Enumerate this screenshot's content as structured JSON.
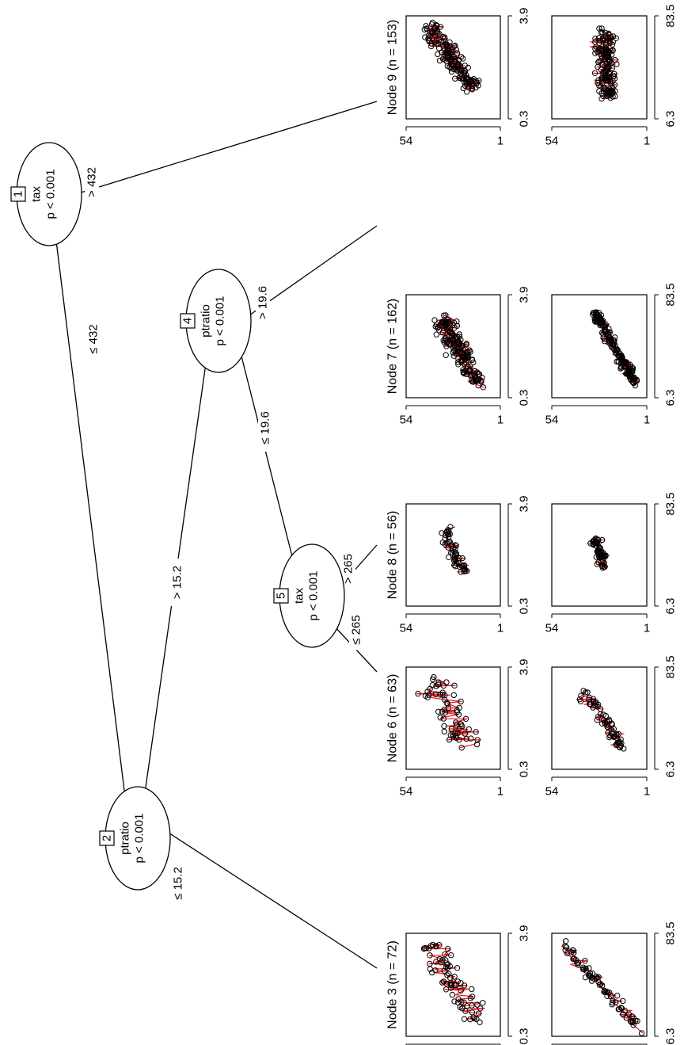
{
  "inner_nodes": [
    {
      "id": "1",
      "variable": "tax",
      "pvalue": "p < 0.001"
    },
    {
      "id": "2",
      "variable": "ptratio",
      "pvalue": "p < 0.001"
    },
    {
      "id": "4",
      "variable": "ptratio",
      "pvalue": "p < 0.001"
    },
    {
      "id": "5",
      "variable": "tax",
      "pvalue": "p < 0.001"
    }
  ],
  "edges": [
    {
      "from": "1",
      "to": "2",
      "label": "≤ 432"
    },
    {
      "from": "1",
      "to": "9",
      "label": "> 432"
    },
    {
      "from": "2",
      "to": "3",
      "label": "≤ 15.2"
    },
    {
      "from": "2",
      "to": "4",
      "label": "> 15.2"
    },
    {
      "from": "4",
      "to": "5",
      "label": "≤ 19.6"
    },
    {
      "from": "4",
      "to": "8",
      "label": "> 19.6"
    },
    {
      "from": "5",
      "to": "6",
      "label": "≤ 265"
    },
    {
      "from": "5",
      "to": "7",
      "label": "> 265"
    }
  ],
  "terminal_nodes": [
    {
      "id": "3",
      "title": "Node 3 (n = 72)"
    },
    {
      "id": "6",
      "title": "Node 6 (n = 63)"
    },
    {
      "id": "7",
      "title": "Node 7 (n = 162)"
    },
    {
      "id": "8",
      "title": "Node 8 (n = 56)"
    },
    {
      "id": "9",
      "title": "Node 9 (n = 153)"
    }
  ],
  "panel_axes": {
    "top": {
      "y_ticks": [
        "54",
        "1"
      ],
      "x_ticks": [
        "0.3",
        "3.9"
      ]
    },
    "bottom": {
      "y_ticks": [
        "54",
        "1"
      ],
      "x_ticks": [
        "6.3",
        "83.5"
      ]
    }
  },
  "colors": {
    "fit_line": "#e8191b",
    "points": "#000000",
    "lines": "#000000"
  }
}
